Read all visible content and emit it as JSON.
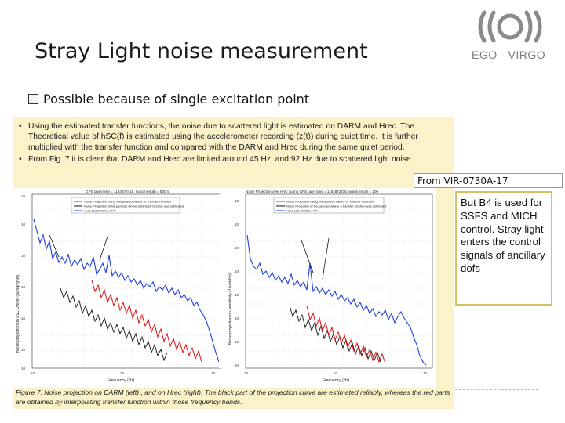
{
  "header": {
    "title": "Stray Light noise measurement",
    "org": "EGO - VIRGO"
  },
  "bullet": "Possible because of single excitation point",
  "paper": {
    "text1": "Using the estimated transfer functions, the noise due to scattered light is estimated on DARM and Hrec. The Theoretical value of hSC(f) is estimated using the accelerometer recording (z(t)) during quiet time. It is further multiplied with the transfer function and compared with the DARM and Hrec during the same quiet period.",
    "text2": "From Fig. 7 it is clear that DARM and Hrec are limited around 45 Hz, and 92 Hz due to scattered light noise.",
    "caption": "Figure 7. Noise projection on DARM (left) , and on Hrec (right). The black part of the projection curve are estimated reliably, whereas the red parts are obtained by interpolating transfer function within those frequency bands.",
    "left_plot": {
      "title": "GPS quiet time = 1184872418, signal length = 800 s",
      "ylabel": "Noise projection on LSC DARM (au/sqrt(Hz))",
      "xlabel": "Frequency (Hz)",
      "legend": [
        "Noise Projection using interpolated values of Transfer Function",
        "Noise Projection at frequencies where a transfer function was estimated",
        "Hrec 1e8 2000Hz FFT"
      ]
    },
    "right_plot": {
      "title": "Noise Projection over Hrec during GPS quiet time = 1184872418, signal length = 200",
      "ylabel": "Noise projection on sensitivity (1/sqrt(Hz))",
      "xlabel": "Frequency (Hz)",
      "legend": [
        "Noise Projection using interpolated values of Transfer Function",
        "Noise Projection at frequencies where a transfer function was estimated",
        "Hrec 1e8 2000Hz FFT"
      ]
    }
  },
  "from_ref": "From VIR-0730A-17",
  "note": "But B4 is used for SSFS and MICH control. Stray light enters the control signals of ancillary dofs",
  "colors": {
    "paper_bg": "#fbf2c9",
    "series_blue": "#1f3fd6",
    "series_black": "#111111",
    "series_red": "#e01010",
    "note_border": "#d8c060"
  }
}
